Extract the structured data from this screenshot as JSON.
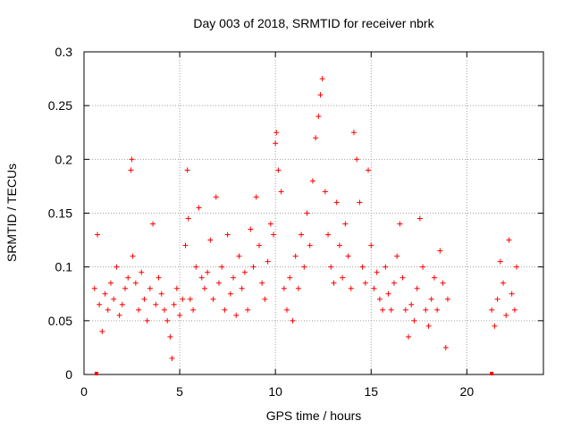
{
  "chart_data": {
    "type": "scatter",
    "title": "Day 003 of 2018, SRMTID for receiver nbrk",
    "xlabel": "GPS time / hours",
    "ylabel": "SRMTID / TECUs",
    "xlim": [
      0,
      24
    ],
    "ylim": [
      0,
      0.3
    ],
    "x_ticks": [
      0,
      5,
      10,
      15,
      20
    ],
    "x_tick_labels": [
      "0",
      "5",
      "10",
      "15",
      "20"
    ],
    "y_ticks": [
      0,
      0.05,
      0.1,
      0.15,
      0.2,
      0.25,
      0.3
    ],
    "y_tick_labels": [
      "0",
      "0.05",
      "0.1",
      "0.15",
      "0.2",
      "0.25",
      "0.3"
    ],
    "grid": true,
    "marker": "plus",
    "series_color": "#ff0000",
    "series": [
      {
        "name": "SRMTID",
        "x": [
          0.55,
          0.7,
          0.8,
          0.95,
          1.1,
          1.25,
          1.4,
          1.55,
          1.7,
          1.85,
          2.0,
          2.15,
          2.3,
          2.45,
          2.5,
          2.55,
          2.7,
          2.85,
          3.0,
          3.15,
          3.3,
          3.45,
          3.6,
          3.75,
          3.9,
          4.05,
          4.2,
          4.35,
          4.5,
          4.6,
          4.7,
          4.85,
          5.0,
          5.15,
          5.3,
          5.4,
          5.45,
          5.55,
          5.7,
          5.85,
          6.0,
          6.15,
          6.3,
          6.45,
          6.6,
          6.75,
          6.9,
          7.05,
          7.2,
          7.35,
          7.5,
          7.65,
          7.8,
          7.95,
          8.1,
          8.25,
          8.4,
          8.55,
          8.7,
          8.85,
          9.0,
          9.15,
          9.3,
          9.45,
          9.6,
          9.75,
          9.9,
          10.0,
          10.05,
          10.15,
          10.3,
          10.45,
          10.6,
          10.75,
          10.9,
          11.05,
          11.2,
          11.35,
          11.5,
          11.65,
          11.8,
          11.95,
          12.1,
          12.25,
          12.35,
          12.45,
          12.6,
          12.75,
          12.9,
          13.05,
          13.2,
          13.35,
          13.5,
          13.65,
          13.8,
          13.95,
          14.1,
          14.25,
          14.4,
          14.55,
          14.7,
          14.85,
          15.0,
          15.15,
          15.3,
          15.45,
          15.6,
          15.75,
          15.9,
          16.05,
          16.2,
          16.35,
          16.5,
          16.65,
          16.8,
          16.95,
          17.1,
          17.25,
          17.4,
          17.55,
          17.7,
          17.85,
          18.0,
          18.15,
          18.3,
          18.45,
          18.6,
          18.75,
          18.9,
          19.0,
          21.3,
          21.45,
          21.6,
          21.75,
          21.9,
          22.05,
          22.2,
          22.35,
          22.5,
          22.6
        ],
        "y": [
          0.08,
          0.13,
          0.065,
          0.04,
          0.075,
          0.06,
          0.085,
          0.07,
          0.1,
          0.055,
          0.065,
          0.08,
          0.09,
          0.19,
          0.2,
          0.11,
          0.085,
          0.06,
          0.095,
          0.07,
          0.05,
          0.08,
          0.14,
          0.065,
          0.09,
          0.075,
          0.06,
          0.05,
          0.035,
          0.015,
          0.065,
          0.08,
          0.055,
          0.07,
          0.12,
          0.19,
          0.145,
          0.07,
          0.06,
          0.1,
          0.155,
          0.09,
          0.08,
          0.095,
          0.125,
          0.07,
          0.165,
          0.085,
          0.1,
          0.06,
          0.13,
          0.075,
          0.09,
          0.055,
          0.11,
          0.08,
          0.095,
          0.06,
          0.135,
          0.1,
          0.165,
          0.12,
          0.085,
          0.07,
          0.105,
          0.14,
          0.13,
          0.215,
          0.225,
          0.19,
          0.17,
          0.08,
          0.06,
          0.09,
          0.05,
          0.11,
          0.08,
          0.13,
          0.1,
          0.15,
          0.12,
          0.18,
          0.22,
          0.24,
          0.26,
          0.275,
          0.17,
          0.13,
          0.1,
          0.085,
          0.16,
          0.12,
          0.09,
          0.14,
          0.11,
          0.08,
          0.225,
          0.2,
          0.16,
          0.1,
          0.085,
          0.19,
          0.12,
          0.08,
          0.095,
          0.07,
          0.06,
          0.1,
          0.075,
          0.06,
          0.085,
          0.11,
          0.14,
          0.09,
          0.06,
          0.035,
          0.065,
          0.05,
          0.08,
          0.145,
          0.1,
          0.06,
          0.045,
          0.07,
          0.09,
          0.06,
          0.115,
          0.085,
          0.025,
          0.07,
          0.06,
          0.045,
          0.07,
          0.105,
          0.085,
          0.055,
          0.125,
          0.075,
          0.06,
          0.1
        ],
        "axis_points_x": [
          0.65,
          21.3
        ]
      }
    ]
  }
}
